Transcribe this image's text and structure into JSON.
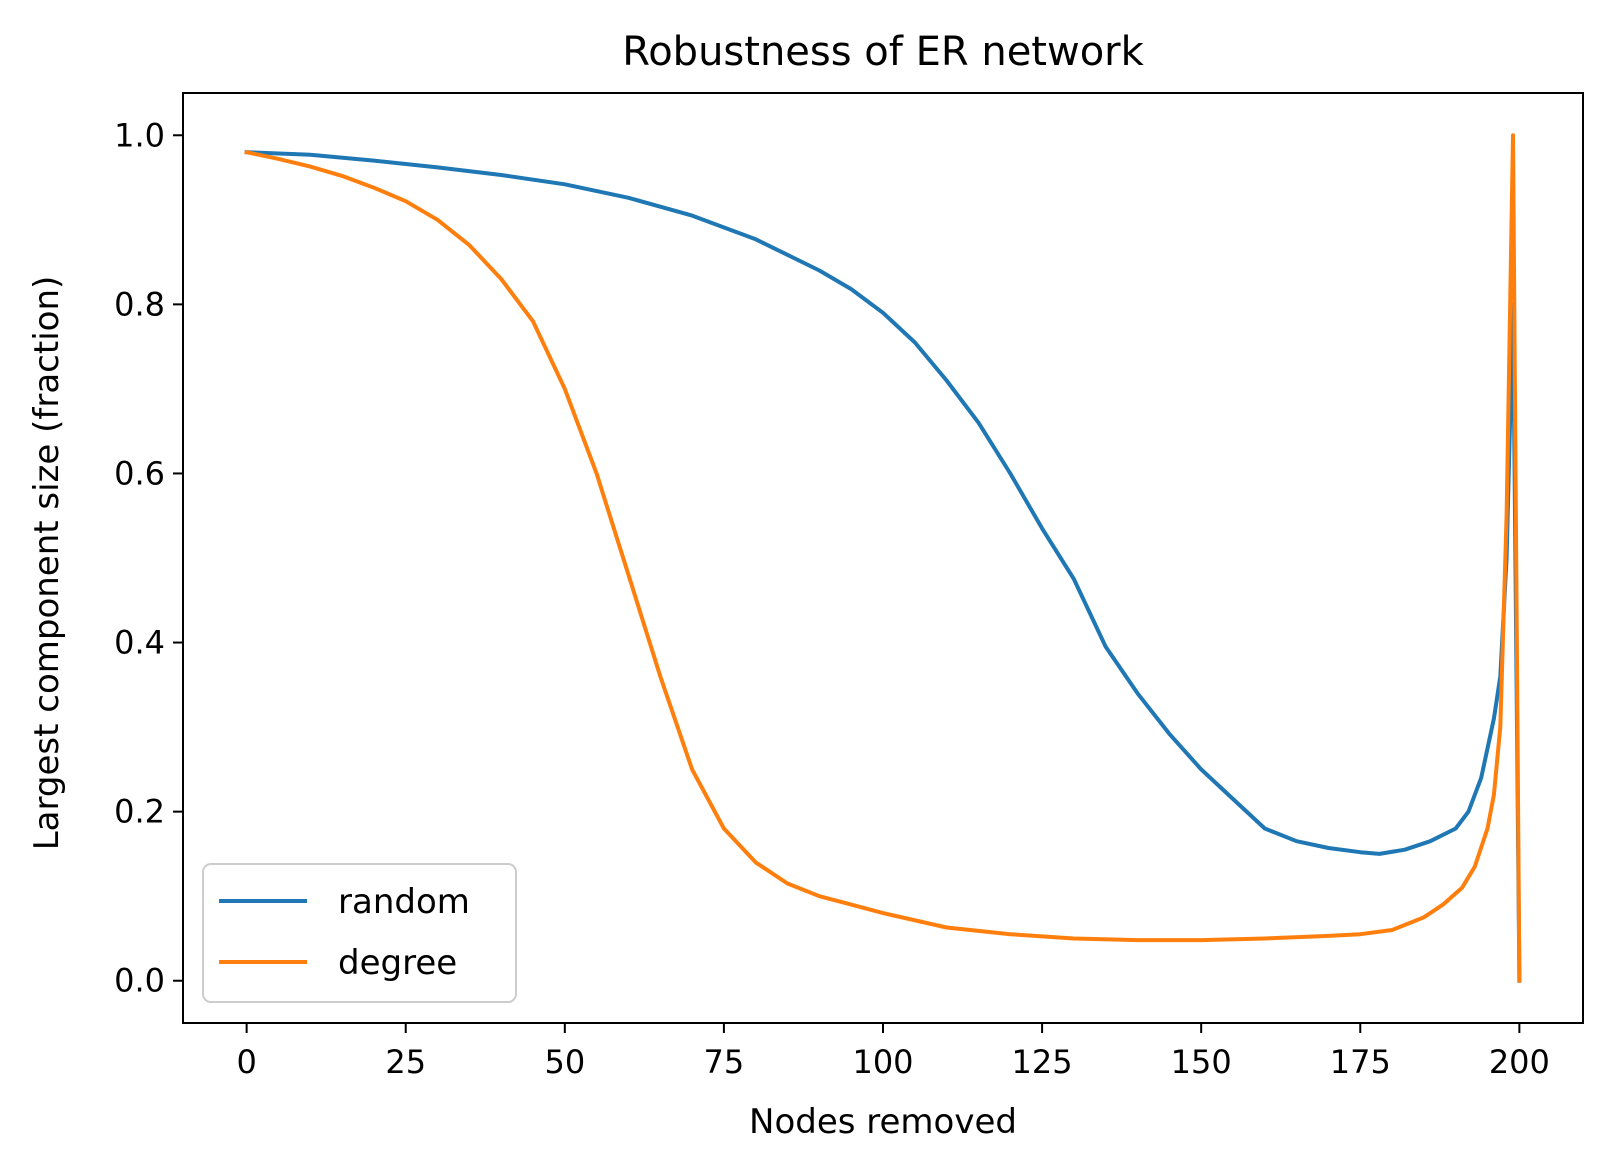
{
  "chart_data": {
    "type": "line",
    "title": "Robustness of ER network",
    "xlabel": "Nodes removed",
    "ylabel": "Largest component size (fraction)",
    "xlim": [
      -10,
      210
    ],
    "ylim": [
      -0.05,
      1.05
    ],
    "xticks": [
      0,
      25,
      50,
      75,
      100,
      125,
      150,
      175,
      200
    ],
    "yticks": [
      0.0,
      0.2,
      0.4,
      0.6,
      0.8,
      1.0
    ],
    "xtick_labels": [
      "0",
      "25",
      "50",
      "75",
      "100",
      "125",
      "150",
      "175",
      "200"
    ],
    "ytick_labels": [
      "0.0",
      "0.2",
      "0.4",
      "0.6",
      "0.8",
      "1.0"
    ],
    "grid": false,
    "legend_position": "lower-left",
    "series": [
      {
        "name": "random",
        "color": "#1f77b4",
        "x": [
          0,
          10,
          20,
          30,
          40,
          50,
          60,
          70,
          80,
          90,
          95,
          100,
          105,
          110,
          115,
          120,
          125,
          130,
          135,
          140,
          145,
          150,
          155,
          160,
          165,
          170,
          175,
          178,
          182,
          186,
          190,
          192,
          194,
          196,
          197,
          198,
          199,
          200
        ],
        "y": [
          0.98,
          0.977,
          0.97,
          0.962,
          0.953,
          0.942,
          0.926,
          0.905,
          0.877,
          0.84,
          0.818,
          0.79,
          0.755,
          0.71,
          0.66,
          0.6,
          0.535,
          0.475,
          0.395,
          0.34,
          0.292,
          0.25,
          0.215,
          0.18,
          0.165,
          0.157,
          0.152,
          0.15,
          0.155,
          0.165,
          0.18,
          0.2,
          0.24,
          0.31,
          0.36,
          0.5,
          0.8,
          0.0
        ]
      },
      {
        "name": "degree",
        "color": "#ff7f0e",
        "x": [
          0,
          5,
          10,
          15,
          20,
          25,
          30,
          35,
          40,
          45,
          50,
          55,
          60,
          65,
          70,
          75,
          80,
          85,
          90,
          95,
          100,
          110,
          120,
          130,
          140,
          150,
          160,
          170,
          175,
          180,
          185,
          188,
          191,
          193,
          195,
          196,
          197,
          198,
          199,
          200
        ],
        "y": [
          0.98,
          0.972,
          0.963,
          0.952,
          0.938,
          0.922,
          0.9,
          0.87,
          0.83,
          0.78,
          0.7,
          0.6,
          0.48,
          0.36,
          0.25,
          0.18,
          0.14,
          0.115,
          0.1,
          0.09,
          0.08,
          0.063,
          0.055,
          0.05,
          0.048,
          0.048,
          0.05,
          0.053,
          0.055,
          0.06,
          0.075,
          0.09,
          0.11,
          0.135,
          0.18,
          0.22,
          0.3,
          0.55,
          1.0,
          0.0
        ]
      }
    ]
  }
}
